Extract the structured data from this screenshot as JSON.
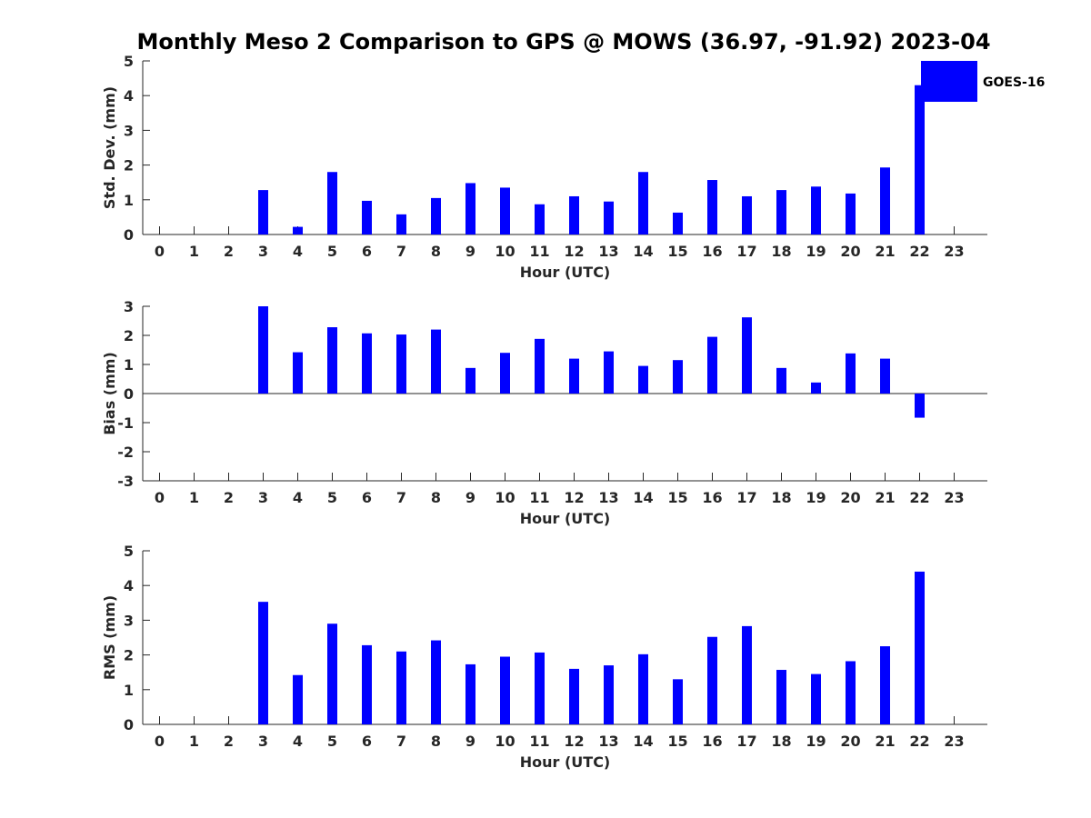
{
  "title": "Monthly Meso 2 Comparison to GPS @ MOWS (36.97, -91.92) 2023-04",
  "colors": {
    "bar": "#0000ff",
    "axis": "#262626"
  },
  "legend": {
    "label": "GOES-16",
    "placement": "top-right"
  },
  "chart_data": [
    {
      "type": "bar",
      "name": "std_dev",
      "xlabel": "Hour (UTC)",
      "ylabel": "Std. Dev. (mm)",
      "ylim": [
        0,
        5
      ],
      "yticks": [
        0,
        1,
        2,
        3,
        4,
        5
      ],
      "categories": [
        "0",
        "1",
        "2",
        "3",
        "4",
        "5",
        "6",
        "7",
        "8",
        "9",
        "10",
        "11",
        "12",
        "13",
        "14",
        "15",
        "16",
        "17",
        "18",
        "19",
        "20",
        "21",
        "22",
        "23"
      ],
      "values": [
        null,
        null,
        null,
        1.28,
        0.22,
        1.8,
        0.97,
        0.58,
        1.05,
        1.48,
        1.35,
        0.87,
        1.1,
        0.95,
        1.8,
        0.63,
        1.57,
        1.1,
        1.28,
        1.38,
        1.18,
        1.93,
        4.3,
        null
      ]
    },
    {
      "type": "bar",
      "name": "bias",
      "xlabel": "Hour (UTC)",
      "ylabel": "Bias (mm)",
      "ylim": [
        -3,
        3
      ],
      "yticks": [
        -3,
        -2,
        -1,
        0,
        1,
        2,
        3
      ],
      "zero_line": true,
      "categories": [
        "0",
        "1",
        "2",
        "3",
        "4",
        "5",
        "6",
        "7",
        "8",
        "9",
        "10",
        "11",
        "12",
        "13",
        "14",
        "15",
        "16",
        "17",
        "18",
        "19",
        "20",
        "21",
        "22",
        "23"
      ],
      "values": [
        null,
        null,
        null,
        3.0,
        1.42,
        2.28,
        2.07,
        2.03,
        2.2,
        0.88,
        1.4,
        1.88,
        1.2,
        1.45,
        0.95,
        1.15,
        1.95,
        2.62,
        0.88,
        0.38,
        1.38,
        1.2,
        -0.83,
        null
      ]
    },
    {
      "type": "bar",
      "name": "rms",
      "xlabel": "Hour (UTC)",
      "ylabel": "RMS (mm)",
      "ylim": [
        0,
        5
      ],
      "yticks": [
        0,
        1,
        2,
        3,
        4,
        5
      ],
      "categories": [
        "0",
        "1",
        "2",
        "3",
        "4",
        "5",
        "6",
        "7",
        "8",
        "9",
        "10",
        "11",
        "12",
        "13",
        "14",
        "15",
        "16",
        "17",
        "18",
        "19",
        "20",
        "21",
        "22",
        "23"
      ],
      "values": [
        null,
        null,
        null,
        3.53,
        1.42,
        2.9,
        2.28,
        2.1,
        2.42,
        1.73,
        1.95,
        2.07,
        1.6,
        1.7,
        2.02,
        1.3,
        2.52,
        2.83,
        1.57,
        1.45,
        1.82,
        2.25,
        4.4,
        null
      ]
    }
  ]
}
